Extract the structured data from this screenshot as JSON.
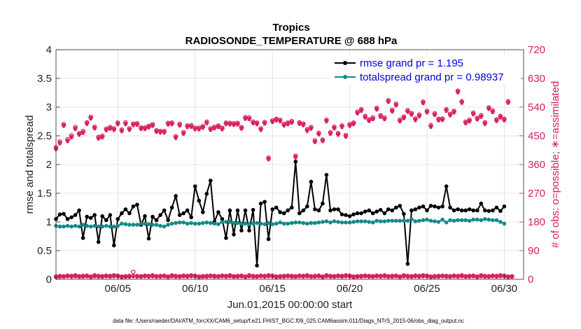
{
  "chart_data": {
    "type": "line",
    "title": "Tropics",
    "subtitle": "RADIOSONDE_TEMPERATURE @ 688 hPa",
    "xlabel": "Jun.01,2015 00:00:00 start",
    "ylabel": "rmse and totalspread",
    "ylabel_right": "# of obs: o=possible; ∗=assimilated",
    "footer": "data file: /Users/raeder/DAI/ATM_forcXX/CAM6_setup/f.e21.FHIST_BGC.f09_025.CAM6assim.011/Diags_NTrS_2015-06/obs_diag_output.nc",
    "xlim": [
      1,
      31.25
    ],
    "ylim": [
      0,
      4
    ],
    "ylim_right": [
      0,
      720
    ],
    "x_ticks": [
      5,
      10,
      15,
      20,
      25,
      30
    ],
    "x_tick_labels": [
      "06/05",
      "06/10",
      "06/15",
      "06/20",
      "06/25",
      "06/30"
    ],
    "y_ticks": [
      0,
      0.5,
      1,
      1.5,
      2,
      2.5,
      3,
      3.5,
      4
    ],
    "y_tick_labels": [
      "0",
      "0.5",
      "1",
      "1.5",
      "2",
      "2.5",
      "3",
      "3.5",
      "4"
    ],
    "y_right_ticks": [
      0,
      90,
      180,
      270,
      360,
      450,
      540,
      630,
      720
    ],
    "y_right_tick_labels": [
      "0",
      "90",
      "180",
      "270",
      "360",
      "450",
      "540",
      "630",
      "720"
    ],
    "x_start": 1.0,
    "x_step": 0.25,
    "legend": {
      "placement": "top-right",
      "entries": [
        "rmse grand pr = 1.195",
        "totalspread grand pr = 0.98937"
      ]
    },
    "series": [
      {
        "name": "rmse grand pr = 1.195",
        "color": "#000000",
        "axis": "left",
        "values": [
          1.05,
          1.13,
          1.14,
          1.05,
          1.08,
          1.12,
          1.2,
          0.72,
          1.09,
          1.07,
          1.12,
          0.65,
          1.1,
          1.03,
          1.12,
          0.59,
          1.05,
          1.15,
          1.22,
          1.15,
          1.27,
          1.3,
          0.95,
          1.1,
          0.71,
          1.09,
          1.03,
          1.12,
          1.2,
          1.03,
          1.25,
          1.45,
          1.12,
          1.15,
          1.2,
          1.08,
          1.62,
          1.37,
          1.17,
          1.49,
          1.72,
          1.0,
          1.17,
          1.05,
          0.72,
          1.2,
          0.78,
          1.2,
          0.85,
          1.2,
          0.85,
          1.21,
          0.24,
          1.32,
          1.35,
          0.7,
          1.22,
          1.25,
          1.17,
          1.15,
          1.2,
          1.25,
          2.05,
          1.15,
          1.2,
          1.27,
          1.7,
          1.22,
          1.2,
          1.32,
          1.82,
          1.2,
          1.22,
          1.22,
          1.13,
          1.12,
          1.1,
          1.13,
          1.15,
          1.15,
          1.18,
          1.2,
          1.15,
          1.18,
          1.21,
          1.15,
          1.22,
          1.2,
          1.25,
          1.28,
          1.14,
          0.27,
          1.2,
          1.22,
          1.25,
          1.27,
          1.2,
          1.28,
          1.27,
          1.25,
          1.27,
          1.62,
          1.25,
          1.2,
          1.22,
          1.2,
          1.2,
          1.22,
          1.2,
          1.2,
          1.32,
          1.2,
          1.19,
          1.2,
          1.25,
          1.19,
          1.27
        ]
      },
      {
        "name": "totalspread grand pr = 0.98937",
        "color": "#148a87",
        "axis": "left",
        "values": [
          0.93,
          0.92,
          0.92,
          0.93,
          0.92,
          0.93,
          0.92,
          0.95,
          0.93,
          0.92,
          0.93,
          0.92,
          0.92,
          0.93,
          0.92,
          0.92,
          0.93,
          0.97,
          0.96,
          0.95,
          0.95,
          0.95,
          0.97,
          0.97,
          0.96,
          0.95,
          0.95,
          0.93,
          0.92,
          0.95,
          0.97,
          0.98,
          0.99,
          0.99,
          0.97,
          0.98,
          0.97,
          0.97,
          0.98,
          0.99,
          0.98,
          0.97,
          0.96,
          1.0,
          1.0,
          1.0,
          0.98,
          0.98,
          0.97,
          0.97,
          0.96,
          0.97,
          0.98,
          0.97,
          0.96,
          0.98,
          0.96,
          0.97,
          0.99,
          0.97,
          0.97,
          0.98,
          0.99,
          0.99,
          0.98,
          0.97,
          0.98,
          0.98,
          0.99,
          1.0,
          1.01,
          0.99,
          1.01,
          1.0,
          0.99,
          0.99,
          0.99,
          1.0,
          1.01,
          1.01,
          1.01,
          1.0,
          0.99,
          1.02,
          1.01,
          1.01,
          1.02,
          1.02,
          1.02,
          1.02,
          1.02,
          1.02,
          1.05,
          1.01,
          1.02,
          1.03,
          1.04,
          1.02,
          1.01,
          1.0,
          1.04,
          0.99,
          1.03,
          1.02,
          1.03,
          1.03,
          1.03,
          1.02,
          1.04,
          1.04,
          1.03,
          1.05,
          1.04,
          1.03,
          1.03,
          1.0,
          0.97
        ]
      },
      {
        "name": "# of obs possible",
        "color": "#d81b60",
        "axis": "right",
        "marker": "o",
        "values": [
          414,
          432,
          486,
          439,
          451,
          477,
          458,
          465,
          492,
          509,
          478,
          446,
          450,
          472,
          477,
          473,
          491,
          469,
          492,
          473,
          488,
          489,
          476,
          476,
          481,
          486,
          467,
          465,
          465,
          490,
          491,
          448,
          487,
          461,
          482,
          483,
          475,
          475,
          480,
          494,
          473,
          478,
          482,
          475,
          491,
          490,
          489,
          490,
          477,
          508,
          507,
          494,
          491,
          473,
          493,
          381,
          498,
          503,
          500,
          487,
          491,
          496,
          387,
          492,
          488,
          470,
          477,
          435,
          459,
          438,
          500,
          461,
          478,
          458,
          482,
          452,
          486,
          491,
          525,
          533,
          512,
          501,
          507,
          537,
          514,
          507,
          561,
          531,
          550,
          500,
          510,
          530,
          521,
          504,
          516,
          557,
          528,
          483,
          520,
          503,
          504,
          533,
          519,
          528,
          591,
          558,
          494,
          500,
          522,
          506,
          514,
          492,
          539,
          529,
          501,
          512,
          503,
          558
        ]
      },
      {
        "name": "# of obs assimilated",
        "color": "#d81b60",
        "axis": "right",
        "marker": "*",
        "values": [
          409,
          427,
          482,
          434,
          446,
          472,
          454,
          460,
          488,
          505,
          474,
          442,
          446,
          468,
          473,
          469,
          487,
          465,
          487,
          469,
          484,
          485,
          472,
          472,
          477,
          482,
          463,
          461,
          461,
          486,
          487,
          444,
          483,
          457,
          478,
          479,
          471,
          471,
          476,
          490,
          469,
          474,
          478,
          471,
          487,
          486,
          485,
          486,
          473,
          504,
          503,
          490,
          487,
          469,
          489,
          377,
          494,
          499,
          496,
          483,
          487,
          492,
          383,
          488,
          484,
          466,
          473,
          431,
          455,
          434,
          496,
          457,
          474,
          454,
          478,
          448,
          482,
          487,
          521,
          529,
          508,
          497,
          503,
          533,
          510,
          503,
          557,
          527,
          546,
          496,
          506,
          526,
          517,
          500,
          512,
          553,
          524,
          479,
          516,
          499,
          500,
          529,
          515,
          524,
          587,
          554,
          490,
          496,
          518,
          502,
          510,
          488,
          535,
          525,
          497,
          508,
          499,
          554
        ]
      },
      {
        "name": "# of obs possible (bottom)",
        "color": "#d81b60",
        "axis": "right",
        "marker": "o",
        "values": [
          8,
          10,
          9,
          11,
          10,
          12,
          9,
          10,
          11,
          8,
          12,
          10,
          9,
          11,
          10,
          12,
          11,
          8,
          9,
          10,
          23,
          10,
          9,
          11,
          10,
          12,
          9,
          10,
          11,
          8,
          12,
          10,
          9,
          11,
          10,
          12,
          11,
          8,
          9,
          10,
          11,
          10,
          9,
          11,
          10,
          12,
          9,
          10,
          11,
          8,
          12,
          10,
          9,
          11,
          10,
          12,
          11,
          8,
          9,
          10,
          11,
          10,
          9,
          11,
          10,
          12,
          9,
          10,
          11,
          8,
          12,
          10,
          9,
          11,
          10,
          12,
          11,
          8,
          9,
          10,
          11,
          10,
          9,
          11,
          10,
          12,
          9,
          10,
          11,
          8,
          12,
          10,
          9,
          11,
          10,
          12,
          11,
          8,
          9,
          10,
          11,
          10,
          9,
          11,
          10,
          12,
          9,
          10,
          11,
          8,
          12,
          10,
          9,
          11,
          10,
          12,
          11,
          8,
          9
        ]
      },
      {
        "name": "# of obs assimilated (bottom)",
        "color": "#d81b60",
        "axis": "right",
        "marker": "*",
        "values": [
          8,
          9,
          9,
          10,
          9,
          10,
          9,
          9,
          10,
          8,
          10,
          9,
          9,
          10,
          9,
          10,
          10,
          8,
          9,
          9,
          10,
          9,
          9,
          10,
          9,
          10,
          9,
          9,
          10,
          8,
          10,
          9,
          9,
          10,
          9,
          10,
          10,
          8,
          9,
          9,
          10,
          9,
          9,
          10,
          9,
          10,
          9,
          9,
          10,
          8,
          10,
          9,
          9,
          10,
          9,
          10,
          10,
          8,
          9,
          9,
          10,
          9,
          9,
          10,
          9,
          10,
          9,
          9,
          10,
          8,
          10,
          9,
          9,
          10,
          9,
          10,
          10,
          8,
          9,
          9,
          10,
          9,
          9,
          10,
          9,
          10,
          9,
          9,
          10,
          8,
          10,
          9,
          9,
          10,
          9,
          10,
          10,
          8,
          9,
          9,
          10,
          9,
          9,
          10,
          9,
          10,
          9,
          9,
          10,
          8,
          10,
          9,
          9,
          10,
          9,
          10,
          10,
          8,
          9
        ]
      }
    ]
  },
  "colors": {
    "rmse": "#000000",
    "spread": "#148a87",
    "obs": "#d81b60",
    "legend_text": "#0000dd"
  }
}
